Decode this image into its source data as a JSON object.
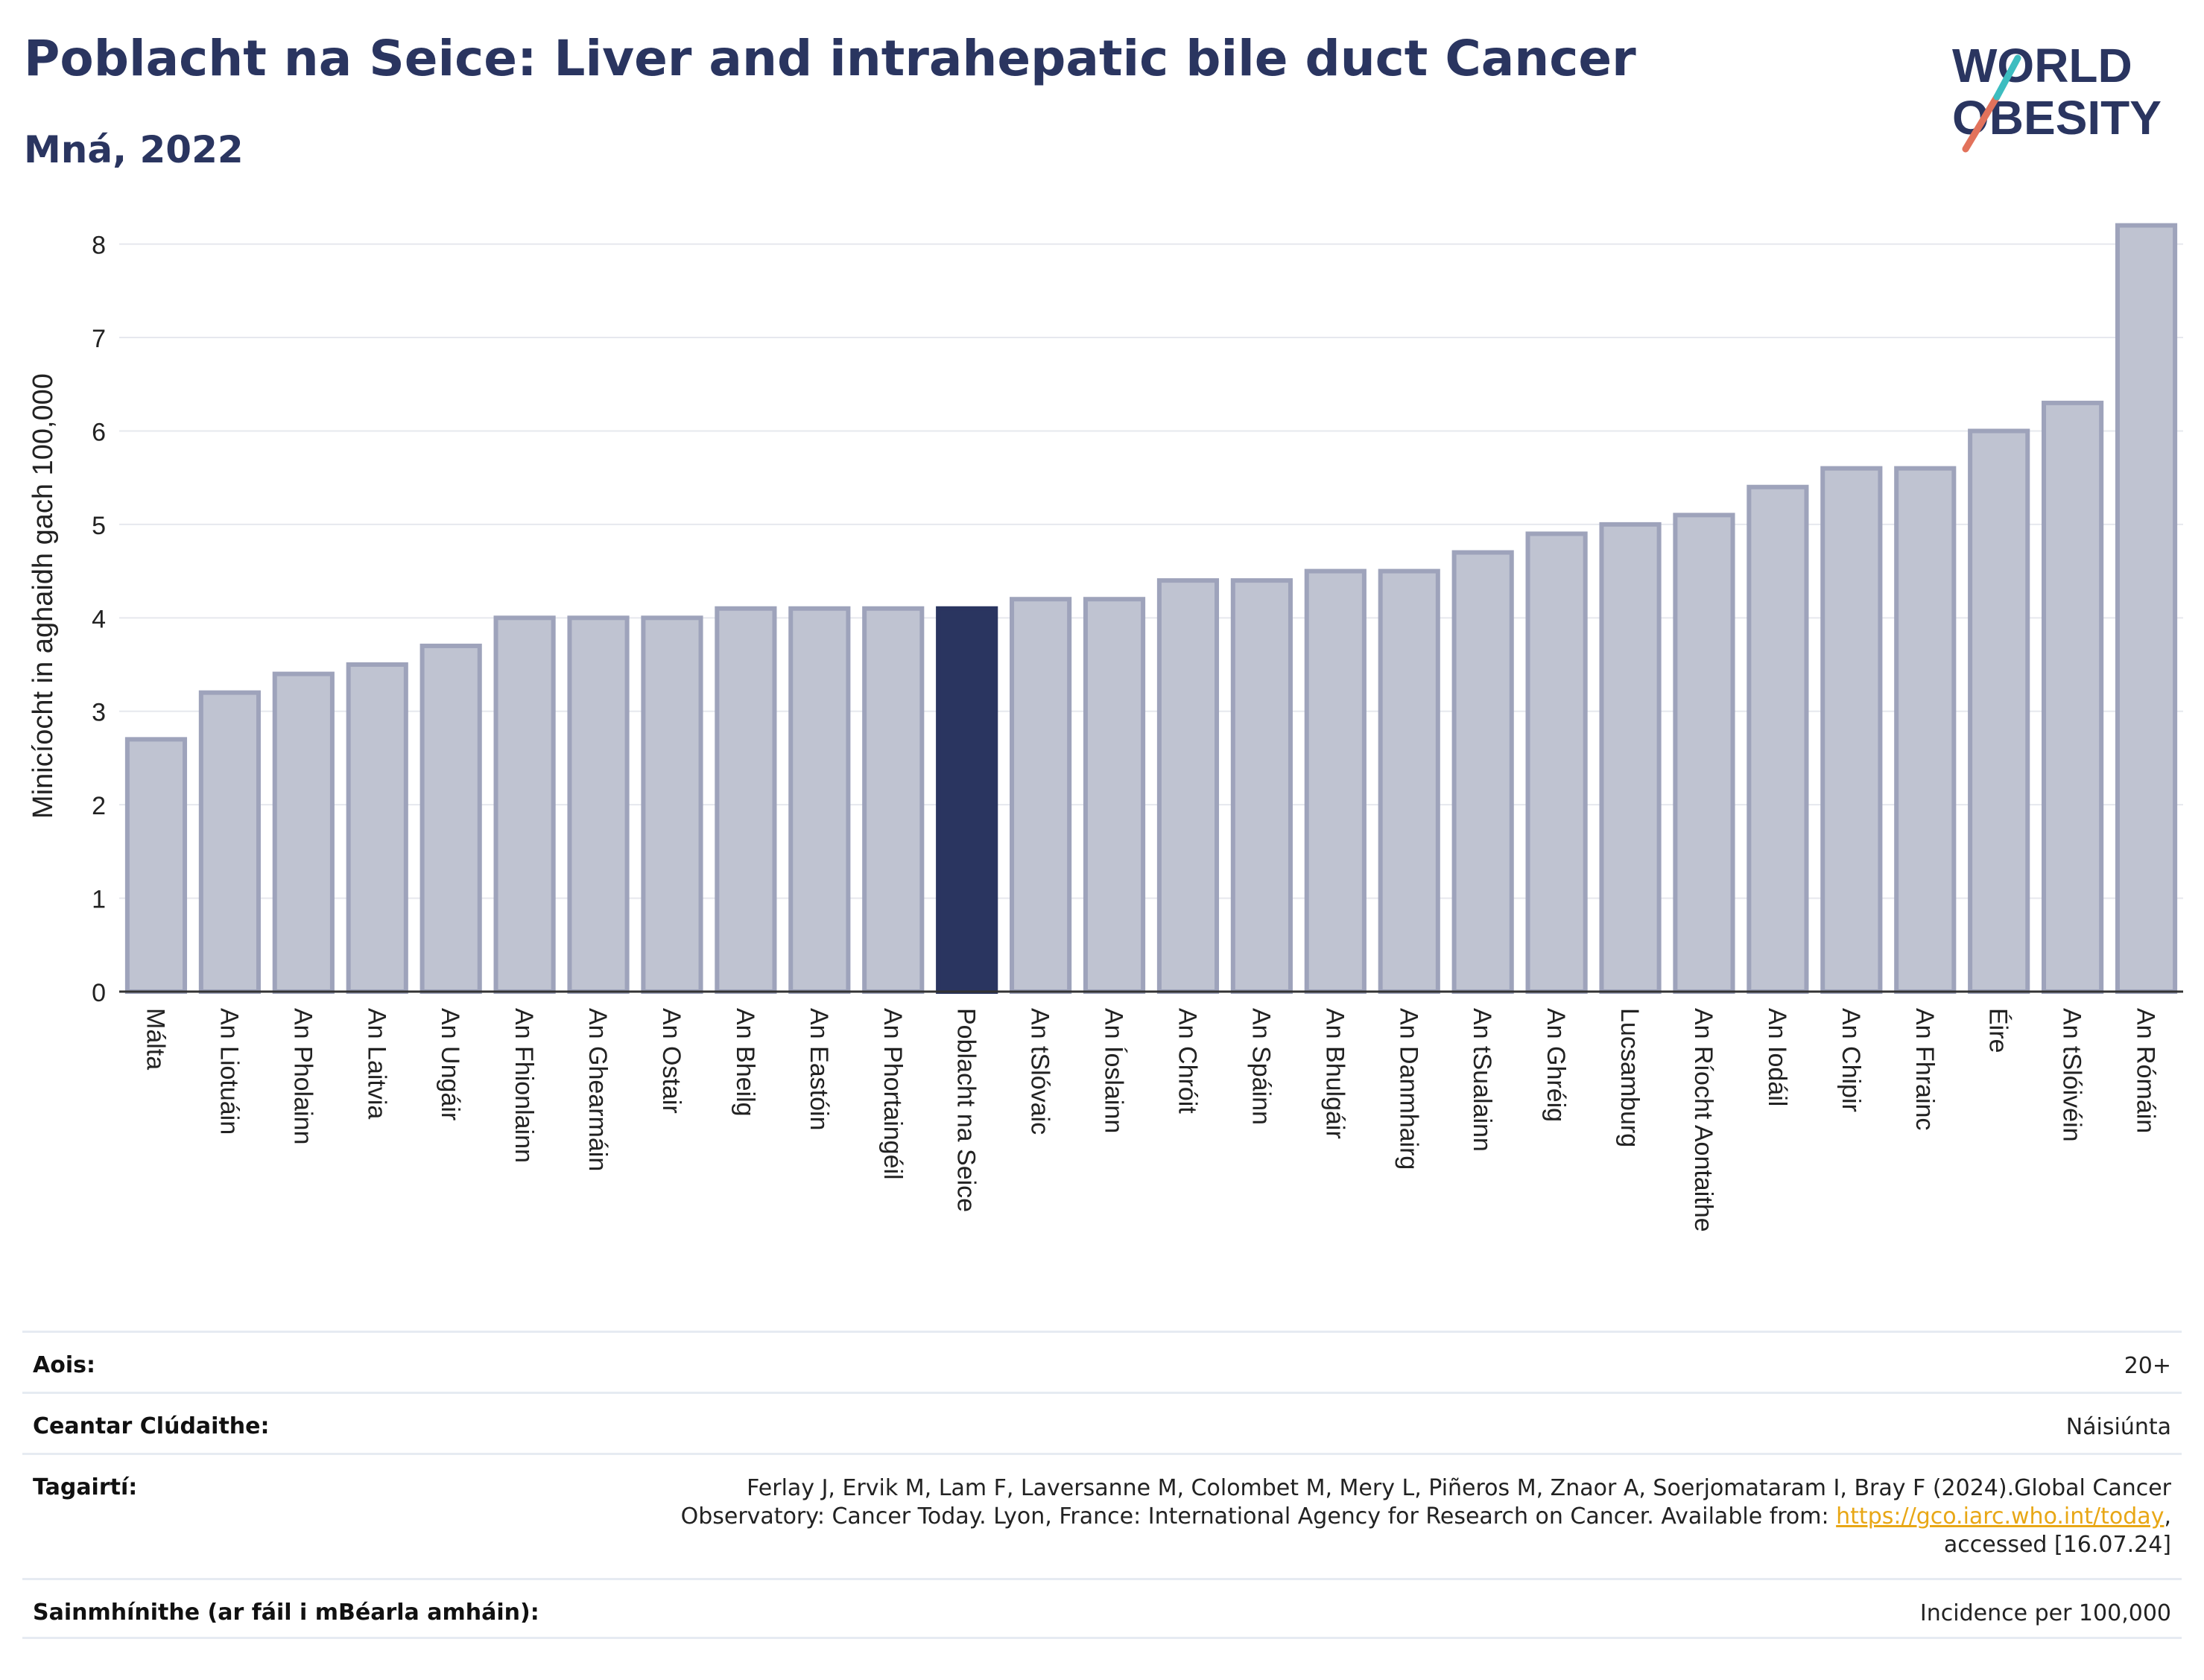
{
  "header": {
    "title": "Poblacht na Seice: Liver and intrahepatic bile duct Cancer",
    "subtitle": "Mná, 2022"
  },
  "logo": {
    "line1": "WORLD",
    "line2": "OBESITY"
  },
  "chart_data": {
    "type": "bar",
    "title": "Poblacht na Seice: Liver and intrahepatic bile duct Cancer",
    "subtitle": "Mná, 2022",
    "ylabel": "Minicíocht in aghaidh gach 100,000",
    "xlabel": "",
    "ylim": [
      0,
      8.3
    ],
    "yticks": [
      0,
      1,
      2,
      3,
      4,
      5,
      6,
      7,
      8
    ],
    "grid": true,
    "highlight": "Poblacht na Seice",
    "colors": {
      "bar": "#bfc3d1",
      "bar_border": "#9ea3bb",
      "highlight": "#2a3560"
    },
    "categories": [
      "Málta",
      "An Liotuáin",
      "An Pholainn",
      "An Laitvia",
      "An Ungáir",
      "An Fhionlainn",
      "An Ghearmáin",
      "An Ostair",
      "An Bheilg",
      "An Eastóin",
      "An Phortaingéil",
      "Poblacht na Seice",
      "An tSlóvaic",
      "An Íoslainn",
      "An Chróit",
      "An Spáinn",
      "An Bhulgáir",
      "An Danmhairg",
      "An tSualainn",
      "An Ghréig",
      "Lucsamburg",
      "An Ríocht Aontaithe",
      "An Iodáil",
      "An Chipir",
      "An Fhrainc",
      "Éire",
      "An tSlóivéin",
      "An Rómáin"
    ],
    "values": [
      2.7,
      3.2,
      3.4,
      3.5,
      3.7,
      4.0,
      4.0,
      4.0,
      4.1,
      4.1,
      4.1,
      4.1,
      4.2,
      4.2,
      4.4,
      4.4,
      4.5,
      4.5,
      4.7,
      4.9,
      5.0,
      5.1,
      5.4,
      5.6,
      5.6,
      6.0,
      6.3,
      8.2
    ]
  },
  "meta": {
    "age_label": "Aois:",
    "age_value": "20+",
    "area_label": "Ceantar Clúdaithe:",
    "area_value": "Náisiúnta",
    "ref_label": "Tagairtí:",
    "ref_text_1": "Ferlay J, Ervik M, Lam F, Laversanne M, Colombet M, Mery L, Piñeros M, Znaor A, Soerjomataram I, Bray F (2024).Global Cancer",
    "ref_text_2": "Observatory: Cancer Today. Lyon, France: International Agency for Research on Cancer. Available from: ",
    "ref_link": "https://gco.iarc.who.int/today",
    "ref_text_3": ",",
    "ref_text_4": "accessed [16.07.24]",
    "def_label": "Sainmhínithe (ar fáil i mBéarla amháin):",
    "def_value": "Incidence per 100,000"
  }
}
